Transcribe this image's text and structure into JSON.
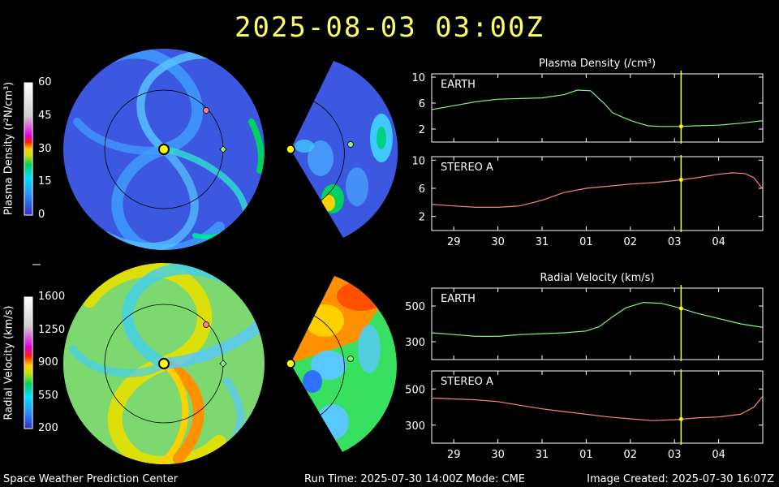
{
  "header": {
    "timestamp": "2025-08-03  03:00Z"
  },
  "footer": {
    "left": "Space Weather Prediction Center",
    "center": "Run Time: 2025-07-30 14:00Z  Mode: CME",
    "right": "Image Created: 2025-07-30 16:07Z"
  },
  "colorbars": {
    "density": {
      "label": "Plasma Density (r²N/cm³)",
      "ticks": [
        "60",
        "45",
        "30",
        "15",
        "0"
      ]
    },
    "velocity": {
      "label": "Radial Velocity (km/s)",
      "ticks": [
        "1600",
        "1250",
        "900",
        "550",
        "200"
      ]
    }
  },
  "colors": {
    "earth": "#8cf07c",
    "stereo": "#ff8080",
    "marker": "#ffff00",
    "title": "#ffff66"
  },
  "chart_data": [
    {
      "type": "line",
      "title": "Plasma Density (/cm³)",
      "panel": "EARTH",
      "x_ticks": [
        "29",
        "30",
        "31",
        "01",
        "02",
        "03",
        "04"
      ],
      "y_ticks": [
        "10",
        "6",
        "2"
      ],
      "ylim": [
        0,
        10.5
      ],
      "xlim": [
        0,
        7.5
      ],
      "current_x": 5.65,
      "series": [
        {
          "name": "EARTH",
          "x": [
            0,
            0.5,
            1,
            1.5,
            2,
            2.5,
            3,
            3.3,
            3.6,
            3.9,
            4.1,
            4.4,
            4.6,
            4.9,
            5.2,
            5.6,
            6,
            6.5,
            7,
            7.5
          ],
          "y": [
            5.0,
            5.6,
            6.2,
            6.6,
            6.7,
            6.8,
            7.3,
            8.0,
            7.9,
            6.0,
            4.5,
            3.6,
            3.1,
            2.5,
            2.4,
            2.4,
            2.5,
            2.6,
            2.9,
            3.3
          ]
        }
      ]
    },
    {
      "type": "line",
      "panel": "STEREO A",
      "x_ticks": [
        "29",
        "30",
        "31",
        "01",
        "02",
        "03",
        "04"
      ],
      "y_ticks": [
        "10",
        "6",
        "2"
      ],
      "ylim": [
        0,
        10.5
      ],
      "xlim": [
        0,
        7.5
      ],
      "current_x": 5.65,
      "series": [
        {
          "name": "STEREO A",
          "x": [
            0,
            0.5,
            1,
            1.5,
            2,
            2.5,
            3,
            3.5,
            4,
            4.5,
            5,
            5.5,
            6,
            6.5,
            6.8,
            7.1,
            7.3,
            7.5
          ],
          "y": [
            3.7,
            3.5,
            3.3,
            3.3,
            3.5,
            4.3,
            5.4,
            6.0,
            6.3,
            6.6,
            6.8,
            7.1,
            7.5,
            8.0,
            8.2,
            8.1,
            7.5,
            5.9
          ]
        }
      ]
    },
    {
      "type": "line",
      "title": "Radial Velocity (km/s)",
      "panel": "EARTH",
      "x_ticks": [
        "29",
        "30",
        "31",
        "01",
        "02",
        "03",
        "04"
      ],
      "y_ticks": [
        "500",
        "300"
      ],
      "ylim": [
        200,
        600
      ],
      "xlim": [
        0,
        7.5
      ],
      "current_x": 5.65,
      "series": [
        {
          "name": "EARTH",
          "x": [
            0,
            0.5,
            1,
            1.5,
            2,
            2.5,
            3,
            3.5,
            3.8,
            4.1,
            4.4,
            4.8,
            5.2,
            5.6,
            6,
            6.5,
            7,
            7.5
          ],
          "y": [
            350,
            340,
            330,
            330,
            340,
            345,
            350,
            360,
            385,
            440,
            490,
            520,
            515,
            490,
            460,
            430,
            400,
            380
          ]
        }
      ]
    },
    {
      "type": "line",
      "panel": "STEREO A",
      "x_ticks": [
        "29",
        "30",
        "31",
        "01",
        "02",
        "03",
        "04"
      ],
      "y_ticks": [
        "500",
        "300"
      ],
      "ylim": [
        200,
        600
      ],
      "xlim": [
        0,
        7.5
      ],
      "current_x": 5.65,
      "series": [
        {
          "name": "STEREO A",
          "x": [
            0,
            0.5,
            1,
            1.5,
            2,
            2.5,
            3,
            3.5,
            4,
            4.5,
            5,
            5.5,
            6,
            6.5,
            7,
            7.3,
            7.5
          ],
          "y": [
            450,
            445,
            440,
            430,
            410,
            390,
            375,
            360,
            345,
            335,
            325,
            330,
            340,
            345,
            360,
            400,
            460
          ]
        }
      ]
    }
  ]
}
